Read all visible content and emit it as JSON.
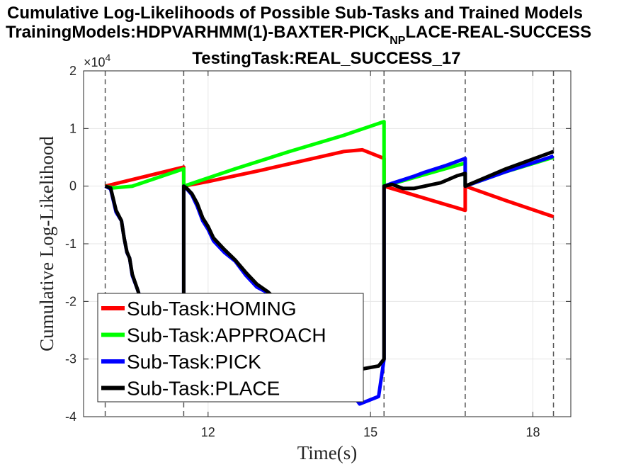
{
  "chart_data": {
    "type": "line",
    "title_lines": [
      "Cumulative Log-Likelihoods of Possible Sub-Tasks and Trained Models",
      "TrainingModels:HDPVARHMM(1)-BAXTER-PICK_NPLACE-REAL-SUCCESS",
      "TestingTask:REAL_SUCCESS_17"
    ],
    "title_line2_parts": {
      "before": "TrainingModels:HDPVARHMM(1)-BAXTER-PICK",
      "subscript": "NP",
      "after": "LACE-REAL-SUCCESS"
    },
    "xlabel": "Time(s)",
    "ylabel": "Cumulative Log-Likelihood",
    "y_exponent_label": "×10",
    "y_exponent_power": "4",
    "xlim": [
      9.7,
      18.7
    ],
    "ylim": [
      -40000,
      20000
    ],
    "x_ticks": [
      12,
      15,
      18
    ],
    "x_tick_labels": [
      "12",
      "15",
      "18"
    ],
    "y_ticks": [
      -40000,
      -30000,
      -20000,
      -10000,
      0,
      10000,
      20000
    ],
    "y_tick_labels": [
      "-4",
      "-3",
      "-2",
      "-1",
      "0",
      "1",
      "2"
    ],
    "grid": true,
    "boundaries": [
      10.1,
      11.55,
      15.25,
      16.75,
      18.38
    ],
    "legend_position": "lower-left",
    "series": [
      {
        "name": "Sub-Task:HOMING",
        "color": "#ff0000",
        "x": [
          10.1,
          11.55,
          11.55,
          12.0,
          13.0,
          14.5,
          14.85,
          15.25,
          15.25,
          16.75,
          16.75,
          17.5,
          18.38
        ],
        "y": [
          0,
          3300,
          0,
          800,
          2800,
          6000,
          6300,
          4800,
          0,
          -4200,
          0,
          -2500,
          -5300
        ]
      },
      {
        "name": "Sub-Task:APPROACH",
        "color": "#00ff00",
        "x": [
          10.1,
          10.25,
          10.6,
          11.55,
          11.55,
          12.5,
          13.5,
          14.5,
          15.25,
          15.25,
          16.0,
          16.75,
          16.75,
          17.5,
          18.38
        ],
        "y": [
          0,
          -300,
          0,
          3000,
          0,
          3000,
          6000,
          8800,
          11200,
          0,
          2000,
          4000,
          0,
          2500,
          5000
        ]
      },
      {
        "name": "Sub-Task:PICK",
        "color": "#0000ff",
        "x": [
          10.1,
          10.2,
          10.3,
          10.4,
          10.45,
          10.5,
          10.55,
          10.6,
          10.7,
          10.8,
          10.85,
          11.55,
          11.55,
          11.6,
          11.7,
          11.8,
          11.9,
          12.0,
          12.1,
          12.3,
          12.5,
          12.7,
          12.9,
          13.1,
          13.5,
          14.0,
          14.5,
          14.8,
          15.15,
          15.25,
          15.25,
          15.4,
          15.6,
          15.8,
          16.0,
          16.4,
          16.75,
          16.75,
          17.5,
          18.38
        ],
        "y": [
          0,
          -500,
          -4500,
          -6000,
          -9000,
          -11500,
          -12500,
          -15500,
          -18000,
          -21000,
          -24000,
          -24000,
          0,
          -400,
          -1500,
          -3500,
          -6000,
          -7500,
          -9500,
          -11500,
          -13000,
          -15500,
          -17500,
          -18500,
          -22000,
          -28000,
          -34000,
          -37800,
          -36500,
          -30000,
          0,
          500,
          1100,
          1700,
          2400,
          3600,
          4800,
          0,
          2500,
          5200
        ]
      },
      {
        "name": "Sub-Task:PLACE",
        "color": "#000000",
        "x": [
          10.1,
          10.2,
          10.3,
          10.4,
          10.45,
          10.5,
          10.55,
          10.6,
          10.7,
          10.8,
          10.85,
          11.55,
          11.55,
          11.6,
          11.7,
          11.8,
          11.9,
          12.0,
          12.1,
          12.3,
          12.5,
          12.7,
          12.9,
          13.1,
          13.5,
          14.0,
          14.5,
          14.8,
          15.15,
          15.25,
          15.25,
          15.4,
          15.6,
          15.8,
          16.0,
          16.3,
          16.6,
          16.75,
          16.75,
          17.5,
          18.38
        ],
        "y": [
          0,
          -300,
          -4200,
          -6000,
          -9000,
          -11400,
          -12500,
          -15300,
          -18000,
          -21000,
          -24000,
          -24000,
          0,
          -300,
          -1300,
          -3000,
          -5500,
          -7000,
          -9000,
          -11000,
          -12800,
          -15000,
          -17000,
          -18300,
          -21800,
          -26000,
          -31000,
          -31800,
          -31200,
          -30000,
          0,
          300,
          -400,
          -400,
          0,
          600,
          1800,
          2200,
          0,
          3000,
          6000
        ]
      }
    ]
  }
}
